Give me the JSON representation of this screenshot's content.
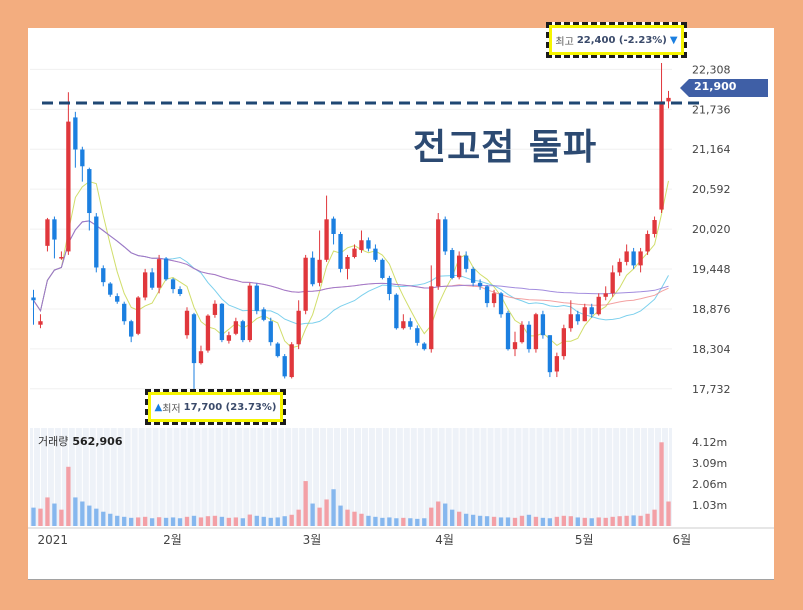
{
  "chart_data": {
    "type": "candlestick",
    "price_axis": {
      "ticks": [
        "22,308",
        "21,736",
        "21,164",
        "20,592",
        "20,020",
        "19,448",
        "18,876",
        "18,304",
        "17,732"
      ],
      "ylim": [
        17600,
        22500
      ]
    },
    "volume_axis": {
      "ticks": [
        "4.12m",
        "3.09m",
        "2.06m",
        "1.03m"
      ],
      "ylim": [
        0,
        4800000
      ]
    },
    "x_ticks": [
      "2021",
      "2월",
      "3월",
      "4월",
      "5월",
      "6월"
    ],
    "high_label": {
      "prefix": "최고",
      "value": "22,400 (-2.23%)",
      "arrow": "▼"
    },
    "low_label": {
      "prefix": "최저",
      "value": "17,700 (23.73%)",
      "arrow": "▲"
    },
    "current_price": "21,900",
    "volume_title": "거래량",
    "volume_value": "562,906",
    "annotation": "전고점 돌파",
    "resistance_level": 21850,
    "up_color": "#e0373c",
    "down_color": "#1b7fe0",
    "candles": [
      [
        19040,
        19000,
        19150,
        18650
      ],
      [
        18650,
        18700,
        18800,
        18600
      ],
      [
        19780,
        20160,
        20180,
        19700
      ],
      [
        20160,
        19870,
        20200,
        19600
      ],
      [
        19600,
        19620,
        19700,
        19580
      ],
      [
        19700,
        21560,
        21980,
        19650
      ],
      [
        21620,
        21160,
        21700,
        20900
      ],
      [
        21160,
        20920,
        21200,
        20700
      ],
      [
        20880,
        20250,
        20900,
        20000
      ],
      [
        20200,
        19470,
        20250,
        19400
      ],
      [
        19460,
        19260,
        19500,
        19200
      ],
      [
        19240,
        19080,
        19260,
        19050
      ],
      [
        19060,
        18980,
        19100,
        18950
      ],
      [
        18950,
        18700,
        18980,
        18650
      ],
      [
        18700,
        18480,
        18720,
        18400
      ],
      [
        18520,
        19040,
        19060,
        18500
      ],
      [
        19040,
        19400,
        19450,
        19000
      ],
      [
        19400,
        19180,
        19460,
        19150
      ],
      [
        19180,
        19590,
        19650,
        19100
      ],
      [
        19600,
        19300,
        19620,
        19280
      ],
      [
        19300,
        19160,
        19320,
        19100
      ],
      [
        19160,
        19090,
        19200,
        19060
      ],
      [
        18500,
        18850,
        18900,
        18450
      ],
      [
        18800,
        18100,
        18820,
        17700
      ],
      [
        18100,
        18270,
        18350,
        18080
      ],
      [
        18280,
        18780,
        18800,
        18250
      ],
      [
        18790,
        18950,
        19000,
        18750
      ],
      [
        18950,
        18430,
        18960,
        18400
      ],
      [
        18420,
        18500,
        18550,
        18380
      ],
      [
        18520,
        18700,
        18750,
        18500
      ],
      [
        18700,
        18430,
        18720,
        18400
      ],
      [
        18430,
        19210,
        19250,
        18400
      ],
      [
        19210,
        18850,
        19240,
        18800
      ],
      [
        18870,
        18720,
        18900,
        18700
      ],
      [
        18700,
        18400,
        18750,
        18350
      ],
      [
        18380,
        18200,
        18400,
        18180
      ],
      [
        18200,
        17910,
        18230,
        17880
      ],
      [
        17900,
        18370,
        18400,
        17880
      ],
      [
        18370,
        18850,
        19000,
        18300
      ],
      [
        18850,
        19610,
        19650,
        18800
      ],
      [
        19610,
        19230,
        19700,
        19200
      ],
      [
        19250,
        19580,
        20000,
        19200
      ],
      [
        19580,
        20160,
        20500,
        19550
      ],
      [
        20170,
        19950,
        20200,
        19800
      ],
      [
        19950,
        19450,
        19980,
        19400
      ],
      [
        19450,
        19620,
        19650,
        19300
      ],
      [
        19620,
        19740,
        19800,
        19600
      ],
      [
        19720,
        19860,
        20000,
        19680
      ],
      [
        19860,
        19740,
        19900,
        19700
      ],
      [
        19740,
        19580,
        19800,
        19550
      ],
      [
        19580,
        19320,
        19600,
        19300
      ],
      [
        19320,
        19090,
        19350,
        19000
      ],
      [
        19080,
        18600,
        19100,
        18580
      ],
      [
        18600,
        18700,
        18800,
        18580
      ],
      [
        18700,
        18620,
        18750,
        18580
      ],
      [
        18600,
        18390,
        18640,
        18350
      ],
      [
        18380,
        18300,
        18400,
        18280
      ],
      [
        18300,
        19200,
        19500,
        18250
      ],
      [
        19200,
        20160,
        20250,
        19150
      ],
      [
        20160,
        19700,
        20200,
        19650
      ],
      [
        19720,
        19320,
        19750,
        19300
      ],
      [
        19330,
        19640,
        19700,
        19300
      ],
      [
        19640,
        19450,
        19700,
        19400
      ],
      [
        19450,
        19250,
        19480,
        19200
      ],
      [
        19250,
        19200,
        19300,
        19150
      ],
      [
        19200,
        18960,
        19220,
        18900
      ],
      [
        18960,
        19100,
        19150,
        18900
      ],
      [
        19100,
        18800,
        19120,
        18750
      ],
      [
        18820,
        18300,
        18850,
        18280
      ],
      [
        18300,
        18400,
        18550,
        18200
      ],
      [
        18400,
        18650,
        18700,
        18380
      ],
      [
        18650,
        18300,
        18700,
        18250
      ],
      [
        18300,
        18800,
        18820,
        18250
      ],
      [
        18800,
        18500,
        18850,
        18450
      ],
      [
        18500,
        17970,
        18500,
        17900
      ],
      [
        17980,
        18200,
        18250,
        17900
      ],
      [
        18200,
        18600,
        18650,
        18150
      ],
      [
        18600,
        18800,
        19000,
        18550
      ],
      [
        18800,
        18700,
        18850,
        18650
      ],
      [
        18700,
        18900,
        18950,
        18700
      ],
      [
        18900,
        18800,
        18950,
        18750
      ],
      [
        18800,
        19050,
        19100,
        18780
      ],
      [
        19050,
        19100,
        19200,
        19000
      ],
      [
        19100,
        19400,
        19500,
        19050
      ],
      [
        19400,
        19550,
        19600,
        19350
      ],
      [
        19550,
        19700,
        19800,
        19500
      ],
      [
        19700,
        19500,
        19750,
        19450
      ],
      [
        19500,
        19700,
        19750,
        19400
      ],
      [
        19700,
        19950,
        20000,
        19650
      ],
      [
        19950,
        20150,
        20200,
        19900
      ],
      [
        20300,
        21850,
        22400,
        20250
      ],
      [
        21850,
        21900,
        22000,
        21750
      ]
    ],
    "volumes": [
      900000,
      850000,
      1400000,
      1100000,
      800000,
      2900000,
      1400000,
      1200000,
      1000000,
      850000,
      700000,
      600000,
      500000,
      450000,
      400000,
      420000,
      450000,
      380000,
      430000,
      400000,
      420000,
      380000,
      450000,
      500000,
      420000,
      480000,
      500000,
      450000,
      400000,
      420000,
      380000,
      560000,
      500000,
      450000,
      400000,
      420000,
      480000,
      550000,
      800000,
      2200000,
      1100000,
      900000,
      1300000,
      1800000,
      1000000,
      800000,
      700000,
      600000,
      500000,
      450000,
      400000,
      420000,
      380000,
      400000,
      380000,
      350000,
      380000,
      900000,
      1200000,
      1100000,
      800000,
      700000,
      600000,
      550000,
      500000,
      480000,
      450000,
      420000,
      420000,
      400000,
      500000,
      550000,
      450000,
      400000,
      380000,
      450000,
      500000,
      480000,
      420000,
      400000,
      380000,
      420000,
      400000,
      450000,
      480000,
      500000,
      520000,
      500000,
      600000,
      800000,
      4100000,
      1200000
    ]
  }
}
